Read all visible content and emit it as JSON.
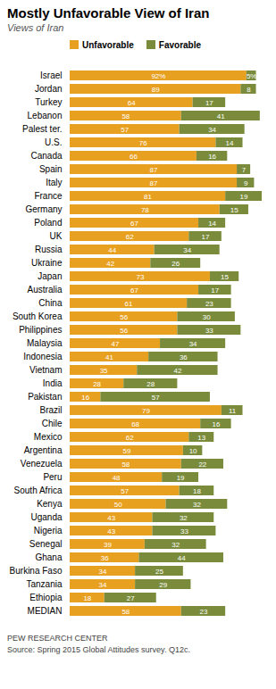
{
  "chart_data": {
    "type": "bar",
    "orientation": "horizontal",
    "stacked": true,
    "title": "Mostly Unfavorable  View of Iran",
    "subtitle": "Views of Iran",
    "annotations": [
      "PEW RESEARCH CENTER",
      "Source: Spring 2015 Global Attitudes survey. Q12c."
    ],
    "categories": [
      "Israel",
      "Jordan",
      "Turkey",
      "Lebanon",
      "Palest ter.",
      "U.S.",
      "Canada",
      "Spain",
      "Italy",
      "France",
      "Germany",
      "Poland",
      "UK",
      "Russia",
      "Ukraine",
      "Japan",
      "Australia",
      "China",
      "South Korea",
      "Philippines",
      "Malaysia",
      "Indonesia",
      "Vietnam",
      "India",
      "Pakistan",
      "Brazil",
      "Chile",
      "Mexico",
      "Argentina",
      "Venezuela",
      "Peru",
      "South Africa",
      "Kenya",
      "Uganda",
      "Nigeria",
      "Senegal",
      "Ghana",
      "Burkina Faso",
      "Tanzania",
      "Ethiopia",
      "MEDIAN"
    ],
    "series": [
      {
        "name": "Unfavorable",
        "color": "#E8A020",
        "values": [
          92,
          89,
          64,
          58,
          57,
          76,
          66,
          87,
          87,
          81,
          78,
          67,
          62,
          44,
          42,
          73,
          67,
          61,
          56,
          56,
          47,
          41,
          35,
          28,
          16,
          79,
          68,
          62,
          59,
          58,
          48,
          57,
          50,
          43,
          43,
          39,
          36,
          34,
          34,
          18,
          58
        ],
        "value_labels": [
          "92%",
          "89",
          "64",
          "58",
          "57",
          "76",
          "66",
          "87",
          "87",
          "81",
          "78",
          "67",
          "62",
          "44",
          "42",
          "73",
          "67",
          "61",
          "56",
          "56",
          "47",
          "41",
          "35",
          "28",
          "16",
          "79",
          "68",
          "62",
          "59",
          "58",
          "48",
          "57",
          "50",
          "43",
          "43",
          "39",
          "36",
          "34",
          "34",
          "18",
          "58"
        ]
      },
      {
        "name": "Favorable",
        "color": "#7A8C3C",
        "values": [
          5,
          8,
          17,
          41,
          34,
          14,
          16,
          7,
          9,
          19,
          15,
          14,
          17,
          34,
          26,
          15,
          17,
          23,
          30,
          33,
          34,
          36,
          42,
          28,
          57,
          11,
          16,
          13,
          10,
          22,
          19,
          18,
          32,
          32,
          33,
          32,
          44,
          25,
          29,
          27,
          23
        ],
        "value_labels": [
          "5%",
          "8",
          "17",
          "41",
          "34",
          "14",
          "16",
          "7",
          "9",
          "19",
          "15",
          "14",
          "17",
          "34",
          "26",
          "15",
          "17",
          "23",
          "30",
          "33",
          "34",
          "36",
          "42",
          "28",
          "57",
          "11",
          "16",
          "13",
          "10",
          "22",
          "19",
          "18",
          "32",
          "32",
          "33",
          "32",
          "44",
          "25",
          "29",
          "27",
          "23"
        ]
      }
    ],
    "xlim": [
      0,
      100
    ],
    "data_labels": true,
    "tick_labels": "y",
    "legend": "top",
    "grid": false
  }
}
